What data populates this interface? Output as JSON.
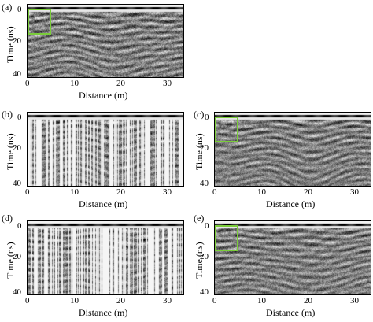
{
  "panels": [
    {
      "id": "a",
      "label": "(a)",
      "xlabel": "Distance (m)",
      "ylabel": "Time (ns)",
      "xticks": [
        "0",
        "10",
        "20",
        "30"
      ],
      "yticks": [
        "0",
        "20",
        "40"
      ],
      "style": "raw",
      "roi": true
    },
    {
      "id": "b",
      "label": "(b)",
      "xlabel": "Distance (m)",
      "ylabel": "Time (ns)",
      "xticks": [
        "0",
        "10",
        "20",
        "30"
      ],
      "yticks": [
        "0",
        "20",
        "40"
      ],
      "style": "missing",
      "roi": false
    },
    {
      "id": "c",
      "label": "(c)",
      "xlabel": "Distance (m)",
      "ylabel": "Time (ns)",
      "xticks": [
        "0",
        "10",
        "20",
        "30"
      ],
      "yticks": [
        "0",
        "20",
        "40"
      ],
      "style": "recon",
      "roi": true
    },
    {
      "id": "d",
      "label": "(d)",
      "xlabel": "Distance (m)",
      "ylabel": "Time (ns)",
      "xticks": [
        "0",
        "10",
        "20",
        "30"
      ],
      "yticks": [
        "0",
        "20",
        "40"
      ],
      "style": "missing",
      "roi": false
    },
    {
      "id": "e",
      "label": "(e)",
      "xlabel": "Distance (m)",
      "ylabel": "Time (ns)",
      "xticks": [
        "0",
        "10",
        "20",
        "30"
      ],
      "yticks": [
        "0",
        "20",
        "40"
      ],
      "style": "recon",
      "roi": true
    }
  ],
  "colors": {
    "roi": "#7acc3a"
  }
}
